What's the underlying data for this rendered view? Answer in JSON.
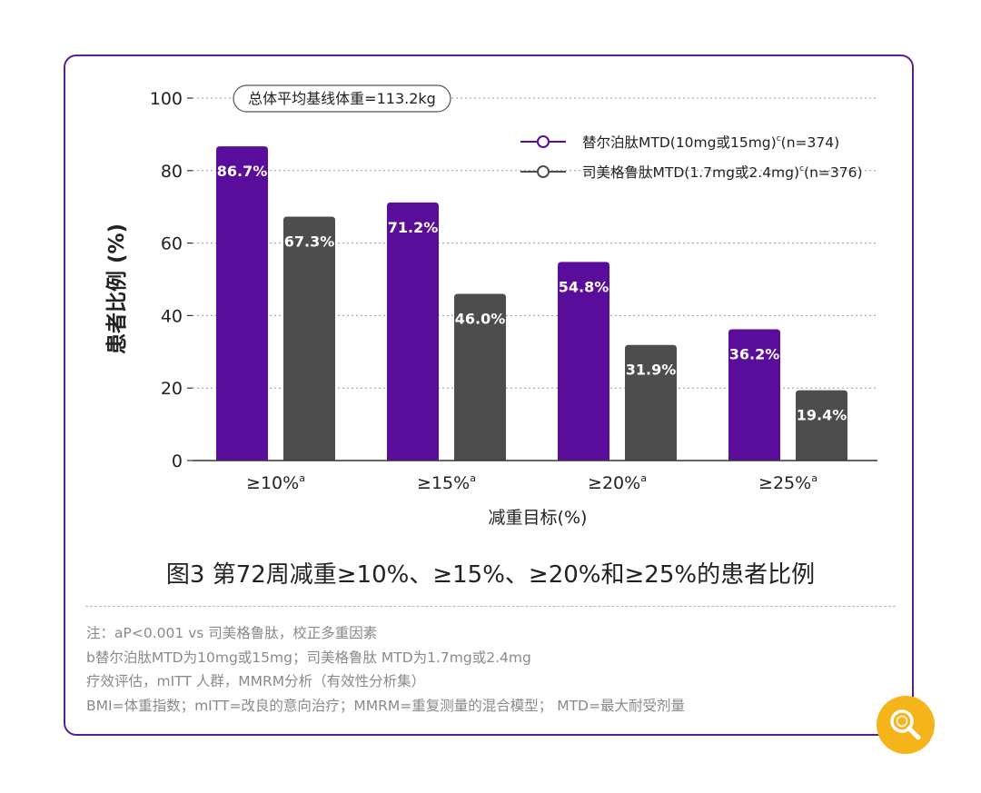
{
  "chart_data": {
    "type": "bar",
    "categories": [
      "≥10%",
      "≥15%",
      "≥20%",
      "≥25%"
    ],
    "category_superscript": "a",
    "series": [
      {
        "name": "替尔泊肽MTD(10mg或15mg)",
        "name_superscript": "c",
        "name_suffix": "(n=374)",
        "color": "#5a0d9a",
        "values": [
          86.7,
          71.2,
          54.8,
          36.2
        ],
        "labels": [
          "86.7%",
          "71.2%",
          "54.8%",
          "36.2%"
        ]
      },
      {
        "name": "司美格鲁肽MTD(1.7mg或2.4mg)",
        "name_superscript": "c",
        "name_suffix": "(n=376)",
        "color": "#4d4d4d",
        "values": [
          67.3,
          46.0,
          31.9,
          19.4
        ],
        "labels": [
          "67.3%",
          "46.0%",
          "31.9%",
          "19.4%"
        ]
      }
    ],
    "ylabel": "患者比例 (%)",
    "xlabel": "减重目标(%)",
    "ylim": [
      0,
      100
    ],
    "yticks": [
      0,
      20,
      40,
      60,
      80,
      100
    ],
    "grid": "dotted horizontal",
    "legend_position": "top-right",
    "annotation": "总体平均基线体重=113.2kg"
  },
  "figure_title": "图3 第72周减重≥10%、≥15%、≥20%和≥25%的患者比例",
  "notes": [
    "注：aP<0.001 vs 司美格鲁肽，校正多重因素",
    "b替尔泊肽MTD为10mg或15mg；司美格鲁肽 MTD为1.7mg或2.4mg",
    "疗效评估，mITT 人群，MMRM分析（有效性分析集）",
    "BMI=体重指数；mITT=改良的意向治疗；MMRM=重复测量的混合模型； MTD=最大耐受剂量"
  ],
  "colors": {
    "border": "#5b1e8f",
    "tirzepatide": "#5a0d9a",
    "semaglutide": "#4d4d4d",
    "badge": "#f5b41a"
  },
  "icons": {
    "badge": "search-icon"
  }
}
